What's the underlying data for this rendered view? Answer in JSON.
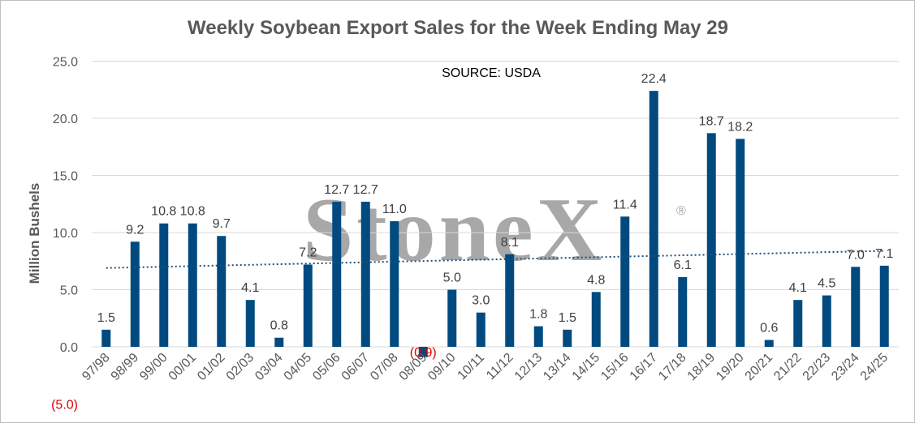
{
  "chart_data": {
    "type": "bar",
    "title": "Weekly Soybean Export Sales for the Week Ending May 29",
    "ylabel": "Million Bushels",
    "xlabel": "",
    "annotation": "SOURCE: USDA",
    "watermark": "StoneX",
    "watermark_mark": "®",
    "ylim": [
      -5,
      25
    ],
    "yticks": [
      -5,
      0,
      5,
      10,
      15,
      20,
      25
    ],
    "ytick_labels": [
      "(5.0)",
      "0.0",
      "5.0",
      "10.0",
      "15.0",
      "20.0",
      "25.0"
    ],
    "grid": true,
    "legend": "none",
    "trendline": {
      "style": "dotted",
      "start": 6.9,
      "end": 8.4
    },
    "categories": [
      "97/98",
      "98/99",
      "99/00",
      "00/01",
      "01/02",
      "02/03",
      "03/04",
      "04/05",
      "05/06",
      "06/07",
      "07/08",
      "08/09",
      "09/10",
      "10/11",
      "11/12",
      "12/13",
      "13/14",
      "14/15",
      "15/16",
      "16/17",
      "17/18",
      "18/19",
      "19/20",
      "20/21",
      "21/22",
      "22/23",
      "23/24",
      "24/25"
    ],
    "values": [
      1.5,
      9.2,
      10.8,
      10.8,
      9.7,
      4.1,
      0.8,
      7.2,
      12.7,
      12.7,
      11.0,
      -0.9,
      5.0,
      3.0,
      8.1,
      1.8,
      1.5,
      4.8,
      11.4,
      22.4,
      6.1,
      18.7,
      18.2,
      0.6,
      4.1,
      4.5,
      7.0,
      7.1
    ],
    "data_labels": [
      "1.5",
      "9.2",
      "10.8",
      "10.8",
      "9.7",
      "4.1",
      "0.8",
      "7.2",
      "12.7",
      "12.7",
      "11.0",
      "(0.9)",
      "5.0",
      "3.0",
      "8.1",
      "1.8",
      "1.5",
      "4.8",
      "11.4",
      "22.4",
      "6.1",
      "18.7",
      "18.2",
      "0.6",
      "4.1",
      "4.5",
      "7.0",
      "7.1"
    ],
    "colors": {
      "bar": "#004a80",
      "grid": "#d9d9d9",
      "trend": "#1f4e79",
      "negative_label": "#e00000"
    }
  }
}
